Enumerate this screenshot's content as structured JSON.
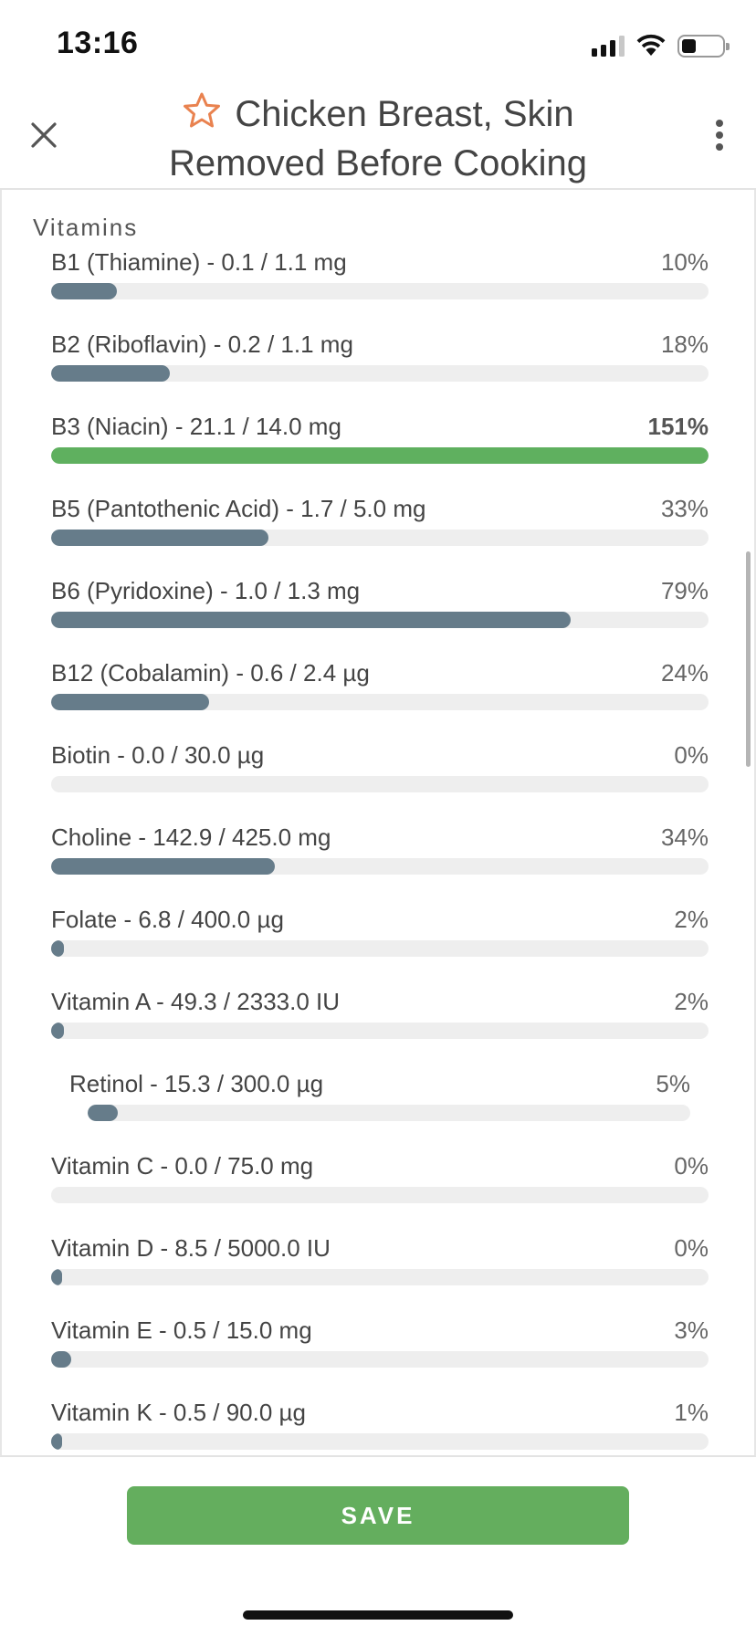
{
  "status_bar": {
    "time": "13:16",
    "signal_bars_active": 3,
    "signal_bars_total": 4,
    "battery_level": 0.35
  },
  "header": {
    "close_icon": "close-icon",
    "favorite_icon": "star-outline-icon",
    "title_line1": "Chicken Breast, Skin",
    "title_line2": "Removed Before Cooking",
    "more_icon": "more-vertical-icon",
    "accent_color": "#e9824f"
  },
  "section": {
    "label": "Vitamins"
  },
  "nutrients": [
    {
      "label": "B1 (Thiamine) - 0.1 / 1.1 mg",
      "percent_text": "10%",
      "fill_fraction": 0.1,
      "over_target": false,
      "sub": false
    },
    {
      "label": "B2 (Riboflavin) - 0.2 / 1.1 mg",
      "percent_text": "18%",
      "fill_fraction": 0.18,
      "over_target": false,
      "sub": false
    },
    {
      "label": "B3 (Niacin) - 21.1 / 14.0 mg",
      "percent_text": "151%",
      "fill_fraction": 1.0,
      "over_target": true,
      "sub": false
    },
    {
      "label": "B5 (Pantothenic Acid) - 1.7 / 5.0 mg",
      "percent_text": "33%",
      "fill_fraction": 0.33,
      "over_target": false,
      "sub": false
    },
    {
      "label": "B6 (Pyridoxine) - 1.0 / 1.3 mg",
      "percent_text": "79%",
      "fill_fraction": 0.79,
      "over_target": false,
      "sub": false
    },
    {
      "label": "B12 (Cobalamin) - 0.6 / 2.4 µg",
      "percent_text": "24%",
      "fill_fraction": 0.24,
      "over_target": false,
      "sub": false
    },
    {
      "label": "Biotin - 0.0 / 30.0 µg",
      "percent_text": "0%",
      "fill_fraction": 0.0,
      "over_target": false,
      "sub": false
    },
    {
      "label": "Choline - 142.9 / 425.0 mg",
      "percent_text": "34%",
      "fill_fraction": 0.34,
      "over_target": false,
      "sub": false
    },
    {
      "label": "Folate - 6.8 / 400.0 µg",
      "percent_text": "2%",
      "fill_fraction": 0.02,
      "over_target": false,
      "sub": false
    },
    {
      "label": "Vitamin A - 49.3 / 2333.0 IU",
      "percent_text": "2%",
      "fill_fraction": 0.02,
      "over_target": false,
      "sub": false
    },
    {
      "label": "Retinol - 15.3 / 300.0 µg",
      "percent_text": "5%",
      "fill_fraction": 0.05,
      "over_target": false,
      "sub": true
    },
    {
      "label": "Vitamin C - 0.0 / 75.0 mg",
      "percent_text": "0%",
      "fill_fraction": 0.0,
      "over_target": false,
      "sub": false
    },
    {
      "label": "Vitamin D - 8.5 / 5000.0 IU",
      "percent_text": "0%",
      "fill_fraction": 0.002,
      "over_target": false,
      "sub": false
    },
    {
      "label": "Vitamin E - 0.5 / 15.0 mg",
      "percent_text": "3%",
      "fill_fraction": 0.03,
      "over_target": false,
      "sub": false
    },
    {
      "label": "Vitamin K - 0.5 / 90.0 µg",
      "percent_text": "1%",
      "fill_fraction": 0.01,
      "over_target": false,
      "sub": false
    }
  ],
  "footer": {
    "save_label": "SAVE"
  },
  "colors": {
    "bar_normal": "#667c8a",
    "bar_over": "#5fb05f",
    "bar_track": "#eeeeee",
    "save_button": "#64ae5e"
  }
}
